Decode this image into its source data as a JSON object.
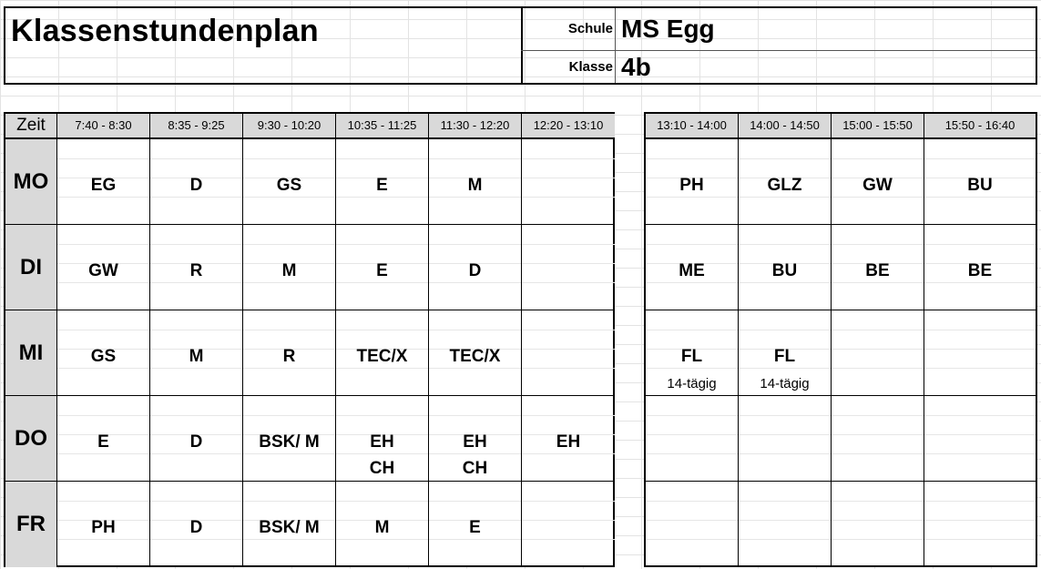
{
  "header": {
    "title": "Klassenstundenplan",
    "schule_label": "Schule",
    "schule_value": "MS Egg",
    "klasse_label": "Klasse",
    "klasse_value": "4b"
  },
  "table": {
    "corner": "Zeit",
    "times_left": [
      "7:40 - 8:30",
      "8:35 - 9:25",
      "9:30 - 10:20",
      "10:35 - 11:25",
      "11:30 - 12:20",
      "12:20 - 13:10"
    ],
    "times_right": [
      "13:10 - 14:00",
      "14:00 - 14:50",
      "15:00 - 15:50",
      "15:50 - 16:40"
    ],
    "days": [
      "MO",
      "DI",
      "MI",
      "DO",
      "FR"
    ],
    "left": [
      [
        {
          "l1": "EG"
        },
        {
          "l1": "D"
        },
        {
          "l1": "GS"
        },
        {
          "l1": "E"
        },
        {
          "l1": "M"
        },
        {
          "l1": ""
        }
      ],
      [
        {
          "l1": "GW"
        },
        {
          "l1": "R"
        },
        {
          "l1": "M"
        },
        {
          "l1": "E"
        },
        {
          "l1": "D"
        },
        {
          "l1": ""
        }
      ],
      [
        {
          "l1": "GS"
        },
        {
          "l1": "M"
        },
        {
          "l1": "R"
        },
        {
          "l1": "TEC/X"
        },
        {
          "l1": "TEC/X"
        },
        {
          "l1": ""
        }
      ],
      [
        {
          "l1": "E"
        },
        {
          "l1": "D"
        },
        {
          "l1": "BSK/ M"
        },
        {
          "l1": "EH",
          "l2": "CH"
        },
        {
          "l1": "EH",
          "l2": "CH"
        },
        {
          "l1": "EH"
        }
      ],
      [
        {
          "l1": "PH"
        },
        {
          "l1": "D"
        },
        {
          "l1": "BSK/ M"
        },
        {
          "l1": "M"
        },
        {
          "l1": "E"
        },
        {
          "l1": ""
        }
      ]
    ],
    "right": [
      [
        {
          "l1": "PH"
        },
        {
          "l1": "GLZ"
        },
        {
          "l1": "GW"
        },
        {
          "l1": "BU"
        }
      ],
      [
        {
          "l1": "ME"
        },
        {
          "l1": "BU"
        },
        {
          "l1": "BE"
        },
        {
          "l1": "BE"
        }
      ],
      [
        {
          "l1": "FL",
          "note": "14-tägig"
        },
        {
          "l1": "FL",
          "note": "14-tägig"
        },
        {
          "l1": ""
        },
        {
          "l1": ""
        }
      ],
      [
        {
          "l1": ""
        },
        {
          "l1": ""
        },
        {
          "l1": ""
        },
        {
          "l1": ""
        }
      ],
      [
        {
          "l1": ""
        },
        {
          "l1": ""
        },
        {
          "l1": ""
        },
        {
          "l1": ""
        }
      ]
    ]
  }
}
